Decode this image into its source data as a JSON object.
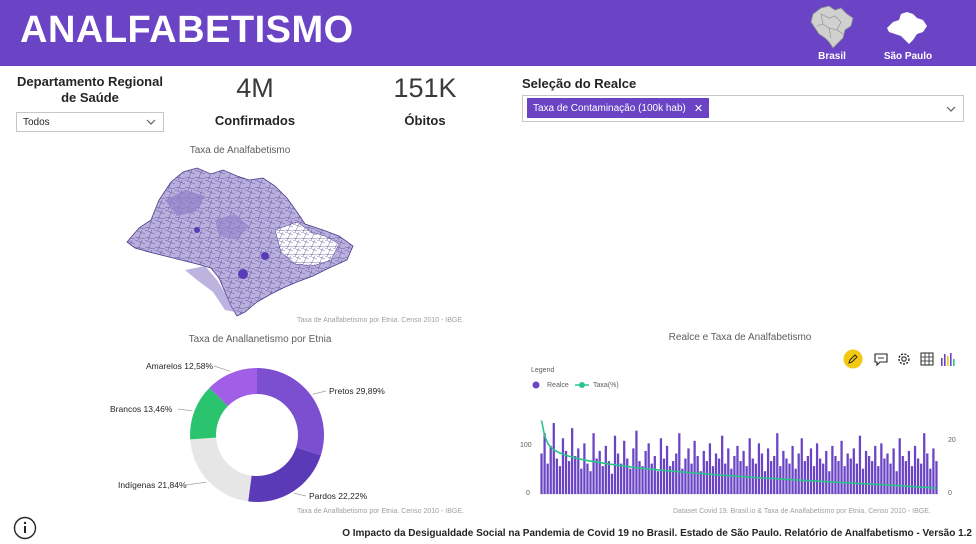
{
  "header": {
    "title": "ANALFABETISMO",
    "nav": [
      {
        "label": "Brasil",
        "icon": "brazil-map-icon"
      },
      {
        "label": "São Paulo",
        "icon": "sao-paulo-map-icon"
      }
    ]
  },
  "slicer": {
    "title": "Departamento Regional de Saúde",
    "selected": "Todos"
  },
  "kpis": [
    {
      "value": "4M",
      "label": "Confirmados"
    },
    {
      "value": "151K",
      "label": "Óbitos"
    }
  ],
  "highlight": {
    "title": "Seleção do Realce",
    "chip": "Taxa de Contaminação (100k hab)"
  },
  "map": {
    "title": "Taxa de Analfabetismo",
    "source": "Taxa de Analfabetismo por Etnia. Censo 2010 - IBGE."
  },
  "donut": {
    "title": "Taxa de Anallanetismo por Etnia",
    "source": "Taxa de Analfabetismo por Etnia. Censo 2010 - IBGE.",
    "colors": [
      "#7b4fd0",
      "#5b3ab7",
      "#e6e6e6",
      "#2bc46e",
      "#a15ee6"
    ]
  },
  "combo": {
    "title": "Realce e Taxa de Analfabetismo",
    "legend_title": "Legend",
    "series_labels": [
      "Realce",
      "Taxa(%)"
    ],
    "source": "Dataset Covid 19. Brasil.io  & Taxa de Analfabetismo por Etnia. Censo 2010 - IBGE.",
    "left_ticks": [
      "100",
      "0"
    ],
    "right_ticks": [
      "20",
      "0"
    ],
    "bar_color": "#6a44c5",
    "line_color": "#2bc48a"
  },
  "footer": {
    "text": "O Impacto da Desigualdade Social na Pandemia de Covid 19 no Brasil. Estado de São Paulo. Relatório de Analfabetismo - Versão 1.2"
  },
  "chart_data": [
    {
      "type": "pie",
      "title": "Taxa de Anallanetismo por Etnia",
      "categories": [
        "Pretos",
        "Pardos",
        "Indígenas",
        "Brancos",
        "Amarelos"
      ],
      "values": [
        29.89,
        22.22,
        21.84,
        13.46,
        12.58
      ],
      "labels": [
        "Pretos 29,89%",
        "Pardos 22,22%",
        "Indígenas 21,84%",
        "Brancos 13,46%",
        "Amarelos 12,58%"
      ]
    },
    {
      "type": "bar",
      "title": "Realce e Taxa de Analfabetismo",
      "series": [
        {
          "name": "Realce",
          "values": [
            80,
            120,
            60,
            95,
            140,
            70,
            55,
            110,
            85,
            65,
            130,
            75,
            90,
            50,
            100,
            60,
            45,
            120,
            70,
            85,
            55,
            95,
            65,
            40,
            115,
            80,
            60,
            105,
            70,
            50,
            90,
            125,
            65,
            55,
            85,
            100,
            60,
            75,
            45,
            110,
            70,
            95,
            55,
            65,
            80,
            120,
            50,
            70,
            90,
            60,
            105,
            75,
            45,
            85,
            65,
            100,
            55,
            80,
            70,
            115,
            60,
            90,
            50,
            75,
            95,
            65,
            85,
            55,
            110,
            70,
            60,
            100,
            80,
            45,
            90,
            65,
            75,
            120,
            55,
            85,
            70,
            60,
            95,
            50,
            80,
            110,
            65,
            75,
            90,
            55,
            100,
            70,
            60,
            85,
            45,
            95,
            75,
            65,
            105,
            55,
            80,
            70,
            90,
            60,
            115,
            50,
            85,
            75,
            65,
            95,
            55,
            100,
            70,
            80,
            60,
            90,
            45,
            110,
            75,
            65,
            85,
            55,
            95,
            70,
            60,
            120,
            80,
            50,
            90,
            65
          ]
        },
        {
          "name": "Taxa(%)",
          "values": [
            29,
            23,
            20,
            18.5,
            17.5,
            16.8,
            16.2,
            15.7,
            15.3,
            14.9,
            14.6,
            14.3,
            14.0,
            13.7,
            13.5,
            13.2,
            13.0,
            12.8,
            12.6,
            12.4,
            12.2,
            12.0,
            11.8,
            11.7,
            11.5,
            11.3,
            11.2,
            11.0,
            10.9,
            10.7,
            10.6,
            10.4,
            10.3,
            10.2,
            10.0,
            9.9,
            9.8,
            9.7,
            9.5,
            9.4,
            9.3,
            9.2,
            9.1,
            9.0,
            8.9,
            8.8,
            8.7,
            8.6,
            8.5,
            8.4,
            8.3,
            8.2,
            8.1,
            8.0,
            7.9,
            7.8,
            7.7,
            7.6,
            7.5,
            7.4,
            7.3,
            7.3,
            7.2,
            7.1,
            7.0,
            6.9,
            6.8,
            6.8,
            6.7,
            6.6,
            6.5,
            6.4,
            6.4,
            6.3,
            6.2,
            6.1,
            6.1,
            6.0,
            5.9,
            5.8,
            5.8,
            5.7,
            5.6,
            5.6,
            5.5,
            5.4,
            5.3,
            5.3,
            5.2,
            5.1,
            5.1,
            5.0,
            4.9,
            4.9,
            4.8,
            4.7,
            4.7,
            4.6,
            4.5,
            4.5,
            4.4,
            4.3,
            4.3,
            4.2,
            4.1,
            4.1,
            4.0,
            3.9,
            3.9,
            3.8,
            3.7,
            3.7,
            3.6,
            3.5,
            3.5,
            3.4,
            3.3,
            3.3,
            3.2,
            3.1,
            3.0,
            3.0,
            2.9,
            2.8,
            2.7,
            2.7,
            2.6,
            2.5,
            2.4,
            2.3
          ]
        }
      ],
      "left_ylim": [
        0,
        150
      ],
      "right_ylim": [
        0,
        30
      ]
    }
  ]
}
